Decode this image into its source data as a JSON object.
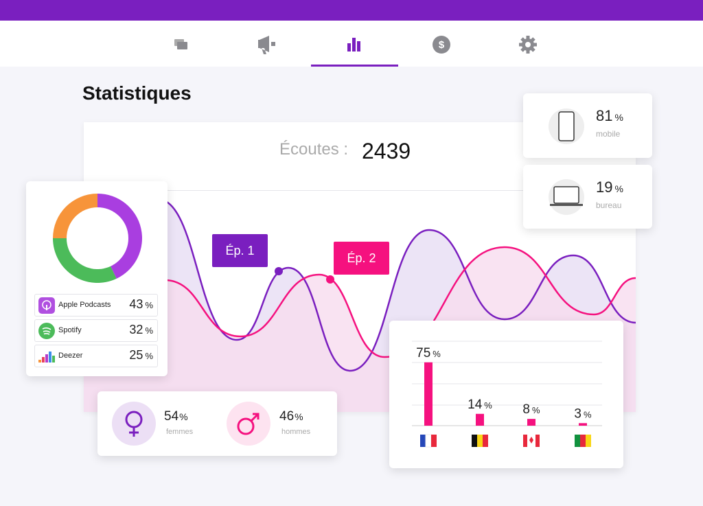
{
  "title": "Statistiques",
  "unit": "%",
  "listens": {
    "label": "Écoutes :",
    "value": 2439
  },
  "devices": [
    {
      "label": "mobile",
      "value": 81
    },
    {
      "label": "bureau",
      "value": 19
    }
  ],
  "episodes": [
    "Ép. 1",
    "Ép. 2"
  ],
  "platforms": {
    "type": "donut",
    "categories": [
      "Apple Podcasts",
      "Spotify",
      "Deezer"
    ],
    "values": [
      43,
      32,
      25
    ],
    "colors": [
      "#a93ee0",
      "#4cbb5a",
      "#f7943a"
    ]
  },
  "gender": [
    {
      "label": "femmes",
      "value": 54
    },
    {
      "label": "hommes",
      "value": 46
    }
  ],
  "countries": {
    "type": "bar",
    "values": [
      75,
      14,
      8,
      3
    ],
    "color": "#f5117f"
  }
}
